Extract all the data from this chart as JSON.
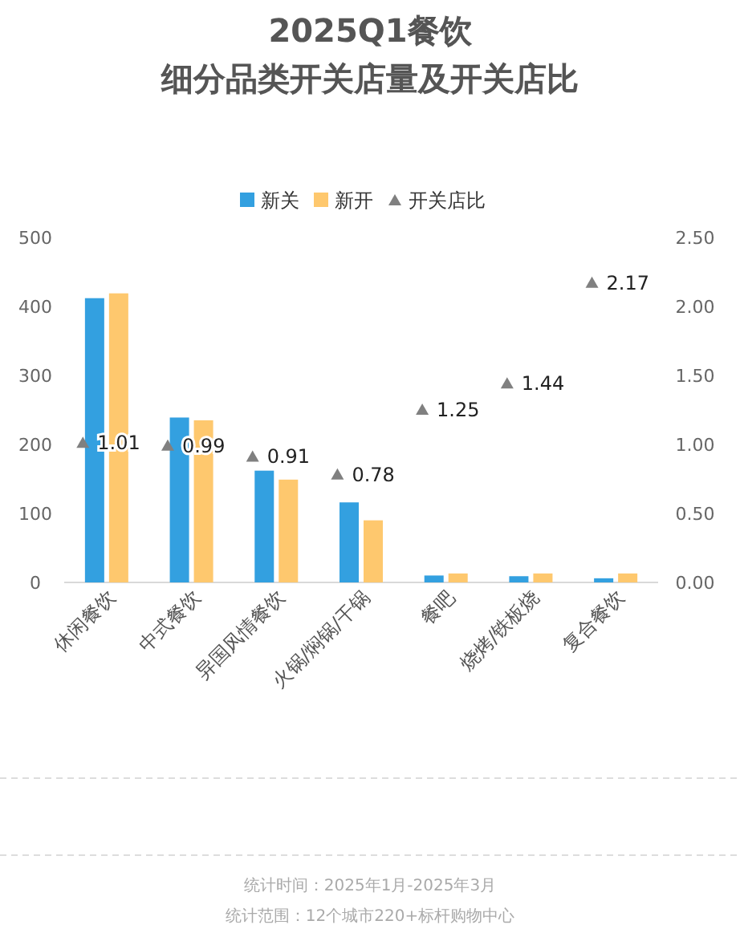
{
  "chart_data": {
    "type": "bar",
    "title": "2025Q1餐饮",
    "subtitle": "细分品类开关店量及开关店比",
    "categories": [
      "休闲餐饮",
      "中式餐饮",
      "异国风情餐饮",
      "火锅/焖锅/干锅",
      "餐吧",
      "烧烤/铁板烧",
      "复合餐饮"
    ],
    "series": [
      {
        "name": "新关",
        "color": "#33a0e0",
        "values": [
          412,
          239,
          162,
          116,
          10,
          9,
          6
        ]
      },
      {
        "name": "新开",
        "color": "#fec86e",
        "values": [
          419,
          235,
          149,
          90,
          13,
          13,
          13
        ]
      },
      {
        "name": "开关店比",
        "type": "scatter",
        "axis": "y2",
        "marker": "triangle",
        "color": "#808080",
        "values": [
          1.01,
          0.99,
          0.91,
          0.78,
          1.25,
          1.44,
          2.17
        ],
        "data_labels": true
      }
    ],
    "ylim": [
      0,
      500
    ],
    "yticks": [
      0,
      100,
      200,
      300,
      400,
      500
    ],
    "y2lim": [
      0,
      2.5
    ],
    "y2ticks": [
      {
        "value": 0,
        "label": "0.00"
      },
      {
        "value": 0.5,
        "label": "0.50"
      },
      {
        "value": 1,
        "label": "1.00"
      },
      {
        "value": 1.5,
        "label": "1.50"
      },
      {
        "value": 2,
        "label": "2.00"
      },
      {
        "value": 2.5,
        "label": "2.50"
      }
    ],
    "legend": "top",
    "grid": false,
    "annotations": [
      "统计时间：2025年1月-2025年3月",
      "统计范围：12个城市220+标杆购物中心"
    ]
  }
}
